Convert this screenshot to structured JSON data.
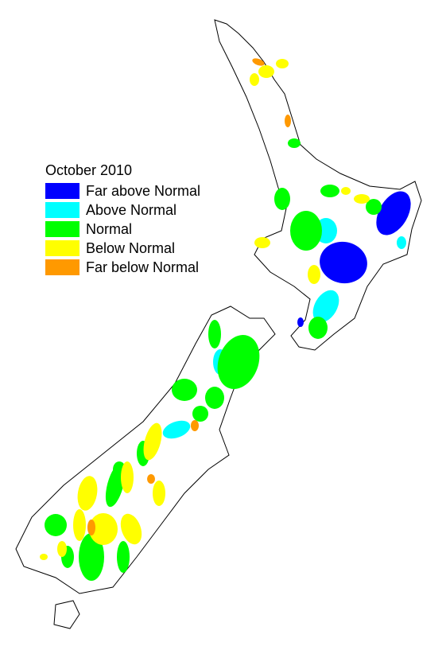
{
  "legend": {
    "title": "October 2010",
    "items": [
      {
        "label": "Far above Normal",
        "color": "#0000ff"
      },
      {
        "label": "Above Normal",
        "color": "#00ffff"
      },
      {
        "label": "Normal",
        "color": "#00ff00"
      },
      {
        "label": "Below Normal",
        "color": "#ffff00"
      },
      {
        "label": "Far below Normal",
        "color": "#ff9900"
      }
    ]
  }
}
